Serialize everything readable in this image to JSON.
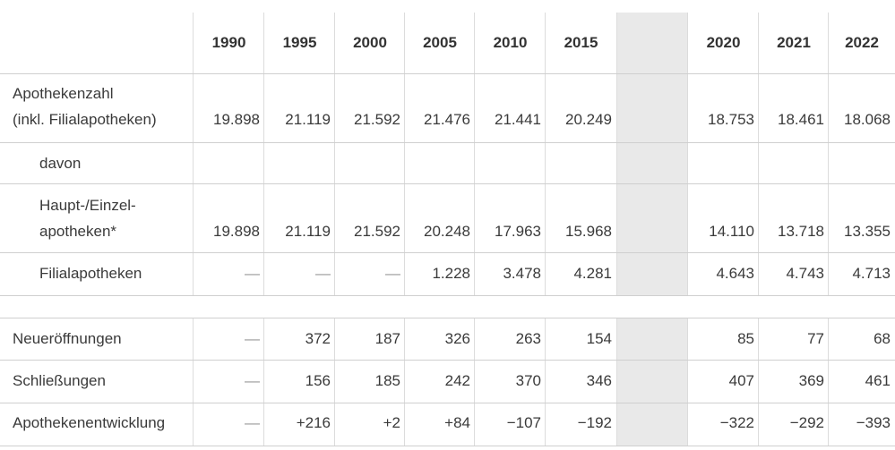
{
  "years": [
    "1990",
    "1995",
    "2000",
    "2005",
    "2010",
    "2015",
    "2020",
    "2021",
    "2022"
  ],
  "rows": [
    {
      "label_lines": [
        "Apothekenzahl",
        "(inkl. Filialapotheken)"
      ],
      "values": [
        "19.898",
        "21.119",
        "21.592",
        "21.476",
        "21.441",
        "20.249",
        "18.753",
        "18.461",
        "18.068"
      ]
    },
    {
      "label_lines": [
        "davon"
      ],
      "values": [
        "",
        "",
        "",
        "",
        "",
        "",
        "",
        "",
        ""
      ]
    },
    {
      "label_lines": [
        "Haupt-/Einzel-",
        "apotheken*"
      ],
      "values": [
        "19.898",
        "21.119",
        "21.592",
        "20.248",
        "17.963",
        "15.968",
        "14.110",
        "13.718",
        "13.355"
      ]
    },
    {
      "label_lines": [
        "Filialapotheken"
      ],
      "values": [
        "—",
        "—",
        "—",
        "1.228",
        "3.478",
        "4.281",
        "4.643",
        "4.743",
        "4.713"
      ]
    },
    {
      "label_lines": [
        "Neueröffnungen"
      ],
      "values": [
        "—",
        "372",
        "187",
        "326",
        "263",
        "154",
        "85",
        "77",
        "68"
      ]
    },
    {
      "label_lines": [
        "Schließungen"
      ],
      "values": [
        "—",
        "156",
        "185",
        "242",
        "370",
        "346",
        "407",
        "369",
        "461"
      ]
    },
    {
      "label_lines": [
        "Apothekenentwicklung"
      ],
      "values": [
        "—",
        "+216",
        "+2",
        "+84",
        "−107",
        "−192",
        "−322",
        "−292",
        "−393"
      ]
    }
  ]
}
